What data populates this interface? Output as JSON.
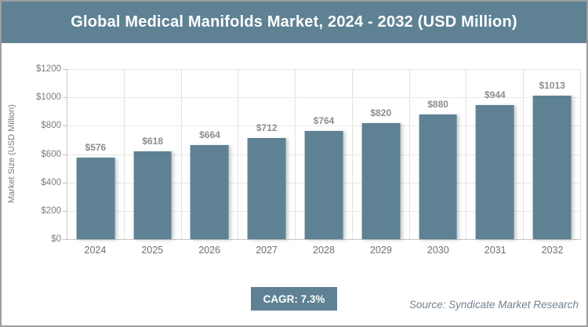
{
  "title": "Global Medical Manifolds Market, 2024 - 2032 (USD Million)",
  "chart_data": {
    "type": "bar",
    "categories": [
      "2024",
      "2025",
      "2026",
      "2027",
      "2028",
      "2029",
      "2030",
      "2031",
      "2032"
    ],
    "values": [
      576,
      618,
      664,
      712,
      764,
      820,
      880,
      944,
      1013
    ],
    "value_prefix": "$",
    "title": "Global Medical Manifolds Market, 2024 - 2032 (USD Million)",
    "xlabel": "",
    "ylabel": "Market Size (USD Million)",
    "ylim": [
      0,
      1200
    ],
    "ytick_step": 200,
    "yticks": [
      "$0",
      "$200",
      "$400",
      "$600",
      "$800",
      "$1000",
      "$1200"
    ],
    "grid": "both",
    "legend": "none",
    "bar_color": "#5e8294"
  },
  "footer": {
    "cagr_label": "CAGR: 7.3%",
    "source": "Source: Syndicate Market Research"
  },
  "colors": {
    "accent_teal": "#5e8294",
    "border_gray": "#9e9e9e",
    "gridline": "#e8e8e8",
    "axis_line": "#c4c4c4",
    "tick_text": "#7d7d7d",
    "value_label_text": "#8d8d8d",
    "source_text": "#74828e"
  }
}
